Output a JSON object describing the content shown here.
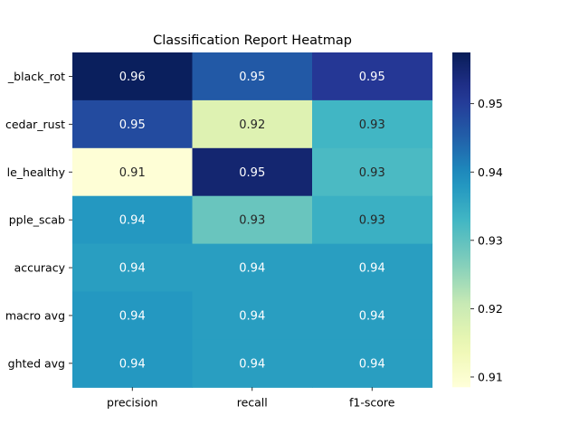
{
  "chart_data": {
    "type": "heatmap",
    "title": "Classification Report Heatmap",
    "rows": [
      "_black_rot",
      "cedar_rust",
      "le_healthy",
      "pple_scab",
      "accuracy",
      "macro avg",
      "ghted avg"
    ],
    "columns": [
      "precision",
      "recall",
      "f1-score"
    ],
    "values": [
      [
        0.957,
        0.946,
        0.951
      ],
      [
        0.948,
        0.917,
        0.933
      ],
      [
        0.909,
        0.955,
        0.932
      ],
      [
        0.938,
        0.929,
        0.934
      ],
      [
        0.937,
        0.937,
        0.937
      ],
      [
        0.938,
        0.937,
        0.937
      ],
      [
        0.938,
        0.937,
        0.937
      ]
    ],
    "annotations": [
      [
        "0.96",
        "0.95",
        "0.95"
      ],
      [
        "0.95",
        "0.92",
        "0.93"
      ],
      [
        "0.91",
        "0.95",
        "0.93"
      ],
      [
        "0.94",
        "0.93",
        "0.93"
      ],
      [
        "0.94",
        "0.94",
        "0.94"
      ],
      [
        "0.94",
        "0.94",
        "0.94"
      ],
      [
        "0.94",
        "0.94",
        "0.94"
      ]
    ],
    "colormap": "YlGnBu",
    "vmin": 0.9085,
    "vmax": 0.9575,
    "colorbar_ticks": [
      0.91,
      0.92,
      0.93,
      0.94,
      0.95
    ],
    "colorbar_tick_labels": [
      "0.91",
      "0.92",
      "0.93",
      "0.94",
      "0.95"
    ]
  }
}
